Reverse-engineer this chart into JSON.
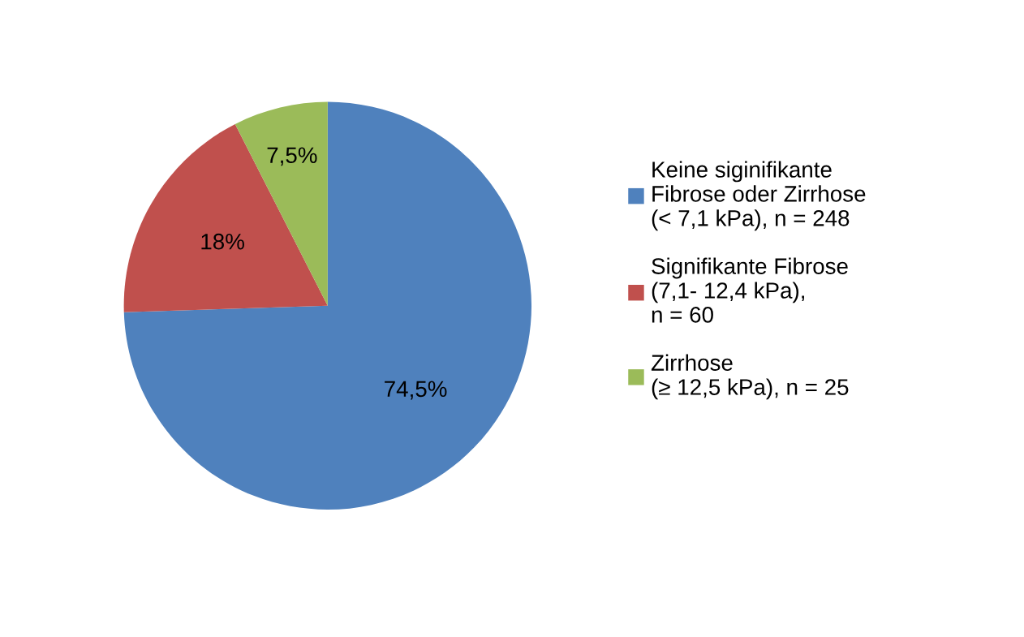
{
  "chart_data": {
    "type": "pie",
    "categories": [
      "Keine siginifikante\nFibrose oder Zirrhose\n(< 7,1 kPa), n = 248",
      "Signifikante Fibrose\n(7,1- 12,4 kPa),\nn = 60",
      "Zirrhose\n(≥ 12,5 kPa), n = 25"
    ],
    "values": [
      74.5,
      18,
      7.5
    ],
    "value_labels": [
      "74,5%",
      "18%",
      "7,5%"
    ],
    "colors": [
      "#4f81bd",
      "#c0504d",
      "#9bbb59"
    ],
    "legend": "right"
  }
}
